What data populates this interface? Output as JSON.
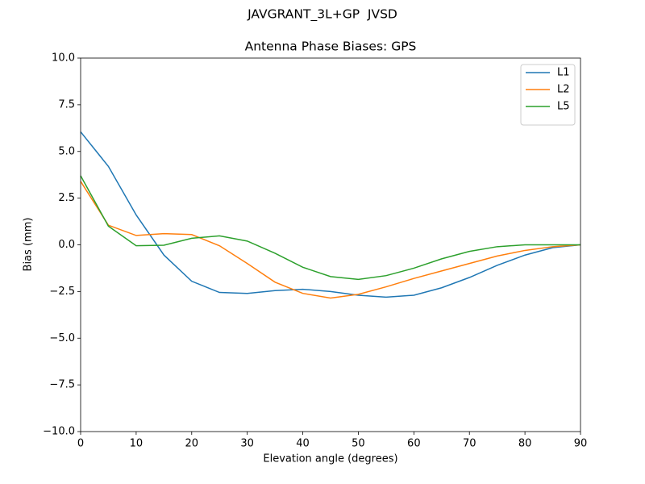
{
  "chart_data": {
    "type": "line",
    "suptitle": "JAVGRANT_3L+GP  JVSD",
    "title": "Antenna Phase Biases: GPS",
    "x_label": "Elevation angle (degrees)",
    "y_label": "Bias (mm)",
    "x": [
      0,
      5,
      10,
      15,
      20,
      25,
      30,
      35,
      40,
      45,
      50,
      55,
      60,
      65,
      70,
      75,
      80,
      85,
      90
    ],
    "series": [
      {
        "name": "L1",
        "color": "#1f77b4",
        "values": [
          6.05,
          4.2,
          1.6,
          -0.55,
          -1.95,
          -2.55,
          -2.6,
          -2.45,
          -2.38,
          -2.5,
          -2.7,
          -2.8,
          -2.7,
          -2.3,
          -1.75,
          -1.1,
          -0.55,
          -0.15,
          0
        ]
      },
      {
        "name": "L2",
        "color": "#ff7f0e",
        "values": [
          3.4,
          1.05,
          0.5,
          0.6,
          0.55,
          -0.05,
          -1.0,
          -2.0,
          -2.6,
          -2.85,
          -2.65,
          -2.25,
          -1.8,
          -1.4,
          -1.0,
          -0.6,
          -0.3,
          -0.1,
          0
        ]
      },
      {
        "name": "L5",
        "color": "#2ca02c",
        "values": [
          3.7,
          1.0,
          -0.05,
          -0.02,
          0.35,
          0.48,
          0.2,
          -0.45,
          -1.2,
          -1.7,
          -1.85,
          -1.65,
          -1.25,
          -0.75,
          -0.35,
          -0.1,
          0,
          0,
          0
        ]
      }
    ],
    "xlim": [
      0,
      90
    ],
    "xticks": [
      0,
      10,
      20,
      30,
      40,
      50,
      60,
      70,
      80,
      90
    ],
    "ylim": [
      -10,
      10
    ],
    "yticks": [
      {
        "value": -10,
        "label": "−10.0"
      },
      {
        "value": -7.5,
        "label": "−7.5"
      },
      {
        "value": -5,
        "label": "−5.0"
      },
      {
        "value": -2.5,
        "label": "−2.5"
      },
      {
        "value": 0,
        "label": "0.0"
      },
      {
        "value": 2.5,
        "label": "2.5"
      },
      {
        "value": 5,
        "label": "5.0"
      },
      {
        "value": 7.5,
        "label": "7.5"
      },
      {
        "value": 10,
        "label": "10.0"
      }
    ],
    "grid": false,
    "legend": "upper right"
  }
}
